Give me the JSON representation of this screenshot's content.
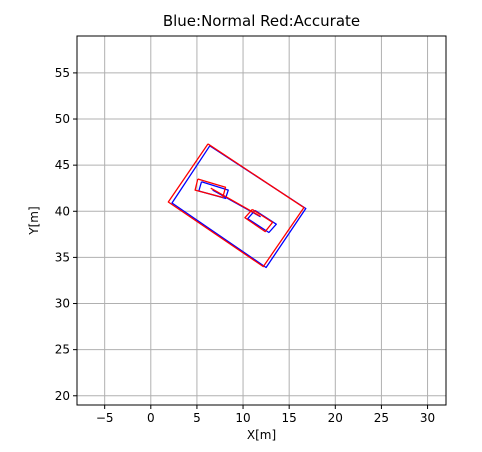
{
  "chart_data": {
    "type": "line",
    "title": "Blue:Normal Red:Accurate",
    "xlabel": "X[m]",
    "ylabel": "Y[m]",
    "xlim": [
      -8.0,
      32.0
    ],
    "ylim": [
      19.0,
      59.0
    ],
    "xticks": [
      -5,
      0,
      5,
      10,
      15,
      20,
      25,
      30
    ],
    "yticks": [
      20,
      25,
      30,
      35,
      40,
      45,
      50,
      55
    ],
    "grid": true,
    "colors": {
      "grid": "#b0b0b0",
      "normal": "#0000ff",
      "accurate": "#ff0000"
    },
    "series": [
      {
        "color": "#0000ff",
        "paths": [
          [
            [
              6.4,
              47.1
            ],
            [
              16.8,
              40.3
            ],
            [
              12.5,
              33.9
            ],
            [
              2.3,
              40.9
            ],
            [
              6.4,
              47.1
            ]
          ],
          [
            [
              5.5,
              43.2
            ],
            [
              8.4,
              42.3
            ],
            [
              8.1,
              41.4
            ],
            [
              5.2,
              42.2
            ],
            [
              5.5,
              43.2
            ]
          ],
          [
            [
              11.3,
              40.1
            ],
            [
              13.6,
              38.6
            ],
            [
              12.8,
              37.7
            ],
            [
              10.5,
              39.2
            ],
            [
              11.3,
              40.1
            ]
          ],
          [
            [
              6.7,
              42.3
            ],
            [
              11.9,
              39.4
            ]
          ]
        ]
      },
      {
        "color": "#ff0000",
        "paths": [
          [
            [
              6.2,
              47.3
            ],
            [
              16.6,
              40.4
            ],
            [
              12.2,
              34.0
            ],
            [
              1.9,
              41.0
            ],
            [
              6.2,
              47.3
            ]
          ],
          [
            [
              5.1,
              43.5
            ],
            [
              8.1,
              42.6
            ],
            [
              7.8,
              41.5
            ],
            [
              4.8,
              42.3
            ],
            [
              5.1,
              43.5
            ]
          ],
          [
            [
              11.0,
              40.2
            ],
            [
              13.2,
              38.8
            ],
            [
              12.4,
              37.8
            ],
            [
              10.2,
              39.3
            ],
            [
              11.0,
              40.2
            ]
          ],
          [
            [
              6.5,
              42.5
            ],
            [
              11.8,
              39.5
            ]
          ]
        ]
      }
    ]
  }
}
